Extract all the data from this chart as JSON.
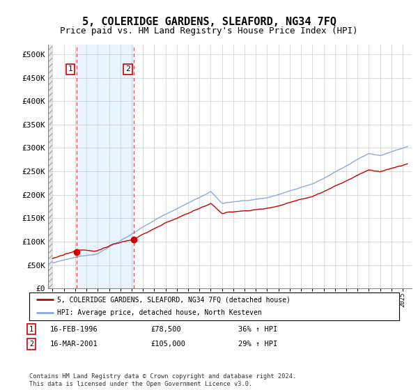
{
  "title": "5, COLERIDGE GARDENS, SLEAFORD, NG34 7FQ",
  "subtitle": "Price paid vs. HM Land Registry's House Price Index (HPI)",
  "ylim": [
    0,
    520000
  ],
  "yticks": [
    0,
    50000,
    100000,
    150000,
    200000,
    250000,
    300000,
    350000,
    400000,
    450000,
    500000
  ],
  "ytick_labels": [
    "£0",
    "£50K",
    "£100K",
    "£150K",
    "£200K",
    "£250K",
    "£300K",
    "£350K",
    "£400K",
    "£450K",
    "£500K"
  ],
  "sale1_date": "16-FEB-1996",
  "sale1_price": 78500,
  "sale1_hpi": "36% ↑ HPI",
  "sale1_year": 1996.12,
  "sale2_date": "16-MAR-2001",
  "sale2_price": 105000,
  "sale2_hpi": "29% ↑ HPI",
  "sale2_year": 2001.21,
  "legend_line1": "5, COLERIDGE GARDENS, SLEAFORD, NG34 7FQ (detached house)",
  "legend_line2": "HPI: Average price, detached house, North Kesteven",
  "footer": "Contains HM Land Registry data © Crown copyright and database right 2024.\nThis data is licensed under the Open Government Licence v3.0.",
  "line_color_red": "#cc0000",
  "line_color_blue": "#88aadd",
  "shade_color": "#ddeeff",
  "hatch_color": "#cccccc",
  "grid_color": "#cccccc",
  "title_fontsize": 11,
  "subtitle_fontsize": 9,
  "tick_fontsize": 8
}
